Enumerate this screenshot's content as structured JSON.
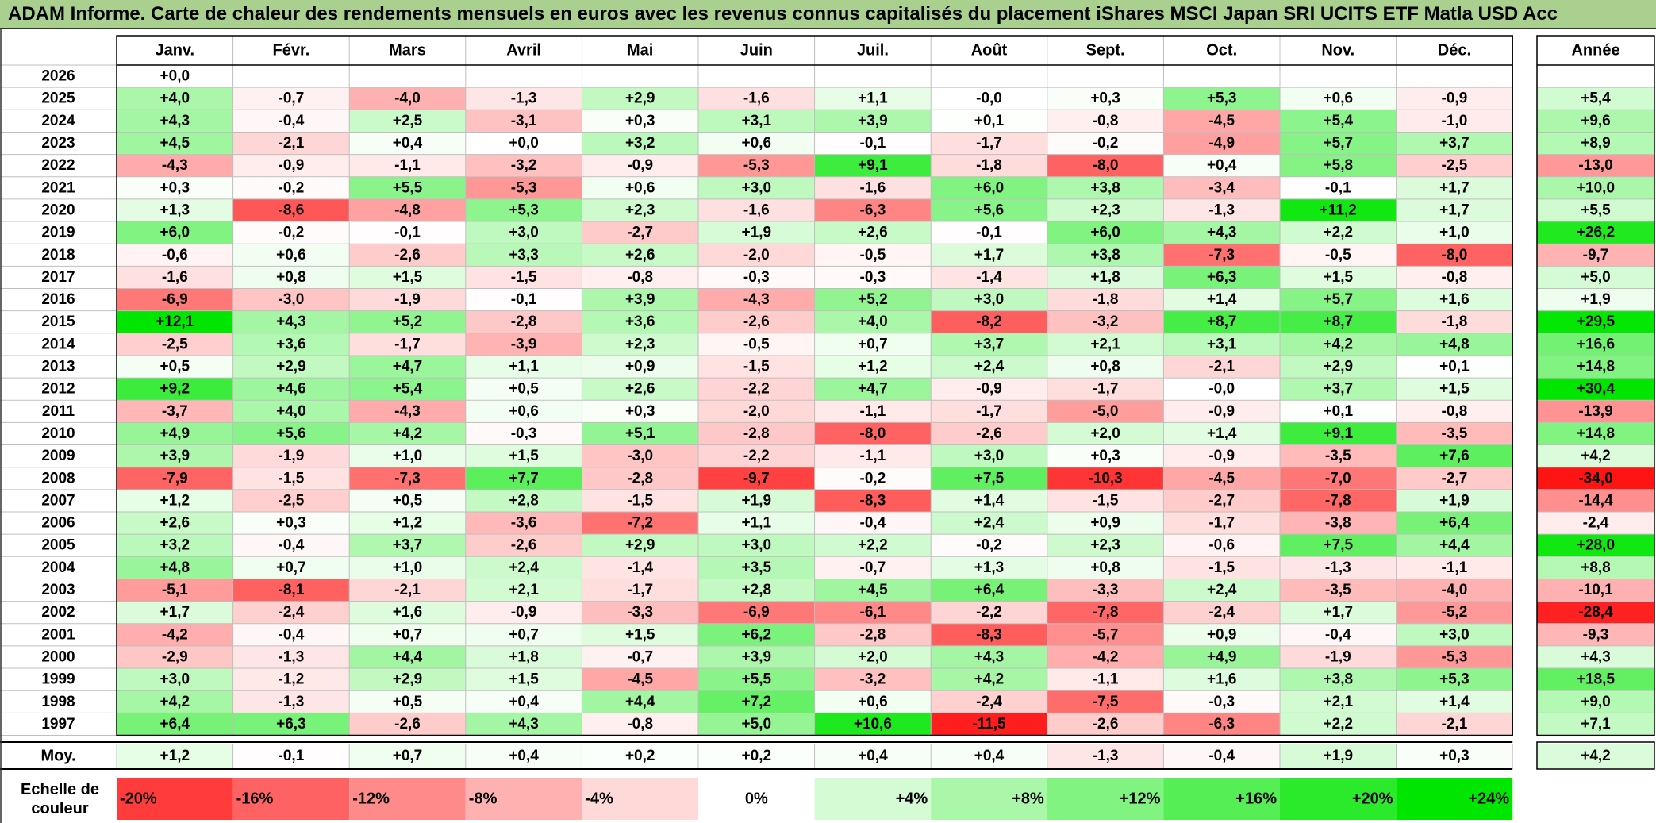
{
  "title": "ADAM Informe. Carte de chaleur des rendements mensuels en euros avec les revenus connus capitalisés du placement iShares MSCI Japan SRI UCITS ETF Matla USD Acc",
  "chart_data": {
    "type": "heatmap",
    "months": [
      "Janv.",
      "Févr.",
      "Mars",
      "Avril",
      "Mai",
      "Juin",
      "Juil.",
      "Août",
      "Sept.",
      "Oct.",
      "Nov.",
      "Déc."
    ],
    "year_header": "Année",
    "avg_label": "Moy.",
    "scale_label": [
      "Echelle de",
      "couleur"
    ],
    "rows": [
      {
        "year": "2026",
        "months": [
          "+0,0",
          "",
          "",
          "",
          "",
          "",
          "",
          "",
          "",
          "",
          "",
          ""
        ],
        "annual": ""
      },
      {
        "year": "2025",
        "months": [
          "+4,0",
          "-0,7",
          "-4,0",
          "-1,3",
          "+2,9",
          "-1,6",
          "+1,1",
          "-0,0",
          "+0,3",
          "+5,3",
          "+0,6",
          "-0,9"
        ],
        "annual": "+5,4"
      },
      {
        "year": "2024",
        "months": [
          "+4,3",
          "-0,4",
          "+2,5",
          "-3,1",
          "+0,3",
          "+3,1",
          "+3,9",
          "+0,1",
          "-0,8",
          "-4,5",
          "+5,4",
          "-1,0"
        ],
        "annual": "+9,6"
      },
      {
        "year": "2023",
        "months": [
          "+4,5",
          "-2,1",
          "+0,4",
          "+0,0",
          "+3,2",
          "+0,6",
          "-0,1",
          "-1,7",
          "-0,2",
          "-4,9",
          "+5,7",
          "+3,7"
        ],
        "annual": "+8,9"
      },
      {
        "year": "2022",
        "months": [
          "-4,3",
          "-0,9",
          "-1,1",
          "-3,2",
          "-0,9",
          "-5,3",
          "+9,1",
          "-1,8",
          "-8,0",
          "+0,4",
          "+5,8",
          "-2,5"
        ],
        "annual": "-13,0"
      },
      {
        "year": "2021",
        "months": [
          "+0,3",
          "-0,2",
          "+5,5",
          "-5,3",
          "+0,6",
          "+3,0",
          "-1,6",
          "+6,0",
          "+3,8",
          "-3,4",
          "-0,1",
          "+1,7"
        ],
        "annual": "+10,0"
      },
      {
        "year": "2020",
        "months": [
          "+1,3",
          "-8,6",
          "-4,8",
          "+5,3",
          "+2,3",
          "-1,6",
          "-6,3",
          "+5,6",
          "+2,3",
          "-1,3",
          "+11,2",
          "+1,7"
        ],
        "annual": "+5,5"
      },
      {
        "year": "2019",
        "months": [
          "+6,0",
          "-0,2",
          "-0,1",
          "+3,0",
          "-2,7",
          "+1,9",
          "+2,6",
          "-0,1",
          "+6,0",
          "+4,3",
          "+2,2",
          "+1,0"
        ],
        "annual": "+26,2"
      },
      {
        "year": "2018",
        "months": [
          "-0,6",
          "+0,6",
          "-2,6",
          "+3,3",
          "+2,6",
          "-2,0",
          "-0,5",
          "+1,7",
          "+3,8",
          "-7,3",
          "-0,5",
          "-8,0"
        ],
        "annual": "-9,7"
      },
      {
        "year": "2017",
        "months": [
          "-1,6",
          "+0,8",
          "+1,5",
          "-1,5",
          "-0,8",
          "-0,3",
          "-0,3",
          "-1,4",
          "+1,8",
          "+6,3",
          "+1,5",
          "-0,8"
        ],
        "annual": "+5,0"
      },
      {
        "year": "2016",
        "months": [
          "-6,9",
          "-3,0",
          "-1,9",
          "-0,1",
          "+3,9",
          "-4,3",
          "+5,2",
          "+3,0",
          "-1,8",
          "+1,4",
          "+5,7",
          "+1,6"
        ],
        "annual": "+1,9"
      },
      {
        "year": "2015",
        "months": [
          "+12,1",
          "+4,3",
          "+5,2",
          "-2,8",
          "+3,6",
          "-2,6",
          "+4,0",
          "-8,2",
          "-3,2",
          "+8,7",
          "+8,7",
          "-1,8"
        ],
        "annual": "+29,5"
      },
      {
        "year": "2014",
        "months": [
          "-2,5",
          "+3,6",
          "-1,7",
          "-3,9",
          "+2,3",
          "-0,5",
          "+0,7",
          "+3,7",
          "+2,1",
          "+3,1",
          "+4,2",
          "+4,8"
        ],
        "annual": "+16,6"
      },
      {
        "year": "2013",
        "months": [
          "+0,5",
          "+2,9",
          "+4,7",
          "+1,1",
          "+0,9",
          "-1,5",
          "+1,2",
          "+2,4",
          "+0,8",
          "-2,1",
          "+2,9",
          "+0,1"
        ],
        "annual": "+14,8"
      },
      {
        "year": "2012",
        "months": [
          "+9,2",
          "+4,6",
          "+5,4",
          "+0,5",
          "+2,6",
          "-2,2",
          "+4,7",
          "-0,9",
          "-1,7",
          "-0,0",
          "+3,7",
          "+1,5"
        ],
        "annual": "+30,4"
      },
      {
        "year": "2011",
        "months": [
          "-3,7",
          "+4,0",
          "-4,3",
          "+0,6",
          "+0,3",
          "-2,0",
          "-1,1",
          "-1,7",
          "-5,0",
          "-0,9",
          "+0,1",
          "-0,8"
        ],
        "annual": "-13,9"
      },
      {
        "year": "2010",
        "months": [
          "+4,9",
          "+5,6",
          "+4,2",
          "-0,3",
          "+5,1",
          "-2,8",
          "-8,0",
          "-2,6",
          "+2,0",
          "+1,4",
          "+9,1",
          "-3,5"
        ],
        "annual": "+14,8"
      },
      {
        "year": "2009",
        "months": [
          "+3,9",
          "-1,9",
          "+1,0",
          "+1,5",
          "-3,0",
          "-2,2",
          "-1,1",
          "+3,0",
          "+0,3",
          "-0,9",
          "-3,5",
          "+7,6"
        ],
        "annual": "+4,2"
      },
      {
        "year": "2008",
        "months": [
          "-7,9",
          "-1,5",
          "-7,3",
          "+7,7",
          "-2,8",
          "-9,7",
          "-0,2",
          "+7,5",
          "-10,3",
          "-4,5",
          "-7,0",
          "-2,7"
        ],
        "annual": "-34,0"
      },
      {
        "year": "2007",
        "months": [
          "+1,2",
          "-2,5",
          "+0,5",
          "+2,8",
          "-1,5",
          "+1,9",
          "-8,3",
          "+1,4",
          "-1,5",
          "-2,7",
          "-7,8",
          "+1,9"
        ],
        "annual": "-14,4"
      },
      {
        "year": "2006",
        "months": [
          "+2,6",
          "+0,3",
          "+1,2",
          "-3,6",
          "-7,2",
          "+1,1",
          "-0,4",
          "+2,4",
          "+0,9",
          "-1,7",
          "-3,8",
          "+6,4"
        ],
        "annual": "-2,4"
      },
      {
        "year": "2005",
        "months": [
          "+3,2",
          "-0,4",
          "+3,7",
          "-2,6",
          "+2,9",
          "+3,0",
          "+2,2",
          "-0,2",
          "+2,3",
          "-0,6",
          "+7,5",
          "+4,4"
        ],
        "annual": "+28,0"
      },
      {
        "year": "2004",
        "months": [
          "+4,8",
          "+0,7",
          "+1,0",
          "+2,4",
          "-1,4",
          "+3,5",
          "-0,7",
          "+1,3",
          "+0,8",
          "-1,5",
          "-1,3",
          "-1,1"
        ],
        "annual": "+8,8"
      },
      {
        "year": "2003",
        "months": [
          "-5,1",
          "-8,1",
          "-2,1",
          "+2,1",
          "-1,7",
          "+2,8",
          "+4,5",
          "+6,4",
          "-3,3",
          "+2,4",
          "-3,5",
          "-4,0"
        ],
        "annual": "-10,1"
      },
      {
        "year": "2002",
        "months": [
          "+1,7",
          "-2,4",
          "+1,6",
          "-0,9",
          "-3,3",
          "-6,9",
          "-6,1",
          "-2,2",
          "-7,8",
          "-2,4",
          "+1,7",
          "-5,2"
        ],
        "annual": "-28,4"
      },
      {
        "year": "2001",
        "months": [
          "-4,2",
          "-0,4",
          "+0,7",
          "+0,7",
          "+1,5",
          "+6,2",
          "-2,8",
          "-8,3",
          "-5,7",
          "+0,9",
          "-0,4",
          "+3,0"
        ],
        "annual": "-9,3"
      },
      {
        "year": "2000",
        "months": [
          "-2,9",
          "-1,3",
          "+4,4",
          "+1,8",
          "-0,7",
          "+3,9",
          "+2,0",
          "+4,3",
          "-4,2",
          "+4,9",
          "-1,9",
          "-5,3"
        ],
        "annual": "+4,3"
      },
      {
        "year": "1999",
        "months": [
          "+3,0",
          "-1,2",
          "+2,9",
          "+1,5",
          "-4,5",
          "+5,5",
          "-3,2",
          "+4,2",
          "-1,1",
          "+1,6",
          "+3,8",
          "+5,3"
        ],
        "annual": "+18,5"
      },
      {
        "year": "1998",
        "months": [
          "+4,2",
          "-1,3",
          "+0,5",
          "+0,4",
          "+4,4",
          "+7,2",
          "+0,6",
          "-2,4",
          "-7,5",
          "-0,3",
          "+2,1",
          "+1,4"
        ],
        "annual": "+9,0"
      },
      {
        "year": "1997",
        "months": [
          "+6,4",
          "+6,3",
          "-2,6",
          "+4,3",
          "-0,8",
          "+5,0",
          "+10,6",
          "-11,5",
          "-2,6",
          "-6,3",
          "+2,2",
          "-2,1"
        ],
        "annual": "+7,1"
      }
    ],
    "average": {
      "months": [
        "+1,2",
        "-0,1",
        "+0,7",
        "+0,4",
        "+0,2",
        "+0,2",
        "+0,4",
        "+0,4",
        "-1,3",
        "-0,4",
        "+1,9",
        "+0,3"
      ],
      "annual": "+4,2"
    },
    "scale": [
      {
        "label": "-20%",
        "value": -20
      },
      {
        "label": "-16%",
        "value": -16
      },
      {
        "label": "-12%",
        "value": -12
      },
      {
        "label": "-8%",
        "value": -8
      },
      {
        "label": "-4%",
        "value": -4
      },
      {
        "label": "0%",
        "value": 0
      },
      {
        "label": "+4%",
        "value": 4
      },
      {
        "label": "+8%",
        "value": 8
      },
      {
        "label": "+12%",
        "value": 12
      },
      {
        "label": "+16%",
        "value": 16
      },
      {
        "label": "+20%",
        "value": 20
      },
      {
        "label": "+24%",
        "value": 24
      }
    ]
  }
}
